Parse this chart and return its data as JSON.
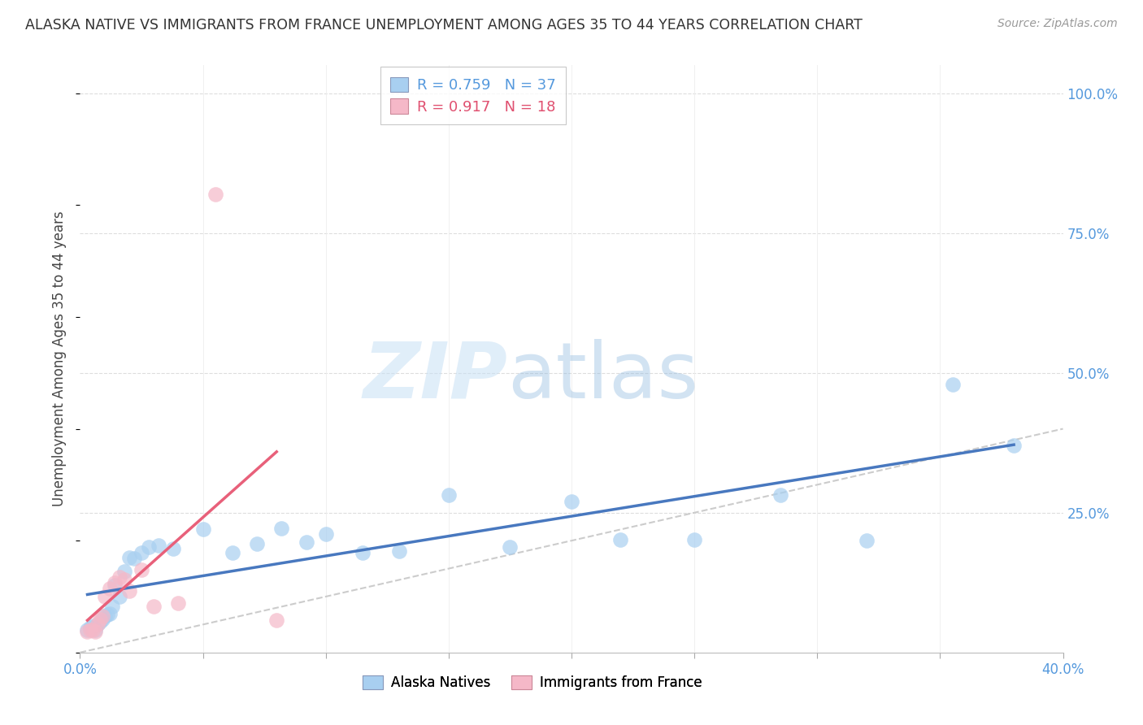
{
  "title": "ALASKA NATIVE VS IMMIGRANTS FROM FRANCE UNEMPLOYMENT AMONG AGES 35 TO 44 YEARS CORRELATION CHART",
  "source": "Source: ZipAtlas.com",
  "ylabel": "Unemployment Among Ages 35 to 44 years",
  "xlim": [
    0.0,
    0.4
  ],
  "ylim": [
    0.0,
    1.05
  ],
  "alaska_R": 0.759,
  "alaska_N": 37,
  "france_R": 0.917,
  "france_N": 18,
  "alaska_color": "#A8CFF0",
  "france_color": "#F5B8C8",
  "alaska_line_color": "#4878BF",
  "france_line_color": "#E8607A",
  "diagonal_color": "#CCCCCC",
  "alaska_x": [
    0.003,
    0.004,
    0.005,
    0.006,
    0.007,
    0.008,
    0.009,
    0.01,
    0.011,
    0.012,
    0.013,
    0.014,
    0.016,
    0.018,
    0.02,
    0.022,
    0.025,
    0.028,
    0.032,
    0.038,
    0.05,
    0.062,
    0.072,
    0.082,
    0.092,
    0.1,
    0.115,
    0.13,
    0.15,
    0.175,
    0.2,
    0.22,
    0.25,
    0.285,
    0.32,
    0.355,
    0.38
  ],
  "alaska_y": [
    0.04,
    0.045,
    0.048,
    0.04,
    0.05,
    0.055,
    0.06,
    0.065,
    0.068,
    0.07,
    0.082,
    0.12,
    0.1,
    0.145,
    0.17,
    0.168,
    0.178,
    0.188,
    0.192,
    0.185,
    0.22,
    0.178,
    0.195,
    0.222,
    0.198,
    0.212,
    0.178,
    0.182,
    0.282,
    0.188,
    0.27,
    0.202,
    0.202,
    0.282,
    0.2,
    0.48,
    0.37
  ],
  "france_x": [
    0.003,
    0.004,
    0.005,
    0.006,
    0.007,
    0.008,
    0.009,
    0.01,
    0.012,
    0.014,
    0.016,
    0.018,
    0.02,
    0.025,
    0.03,
    0.04,
    0.055,
    0.08
  ],
  "france_y": [
    0.038,
    0.04,
    0.04,
    0.038,
    0.05,
    0.06,
    0.065,
    0.1,
    0.115,
    0.125,
    0.135,
    0.13,
    0.11,
    0.148,
    0.082,
    0.088,
    0.82,
    0.058
  ]
}
